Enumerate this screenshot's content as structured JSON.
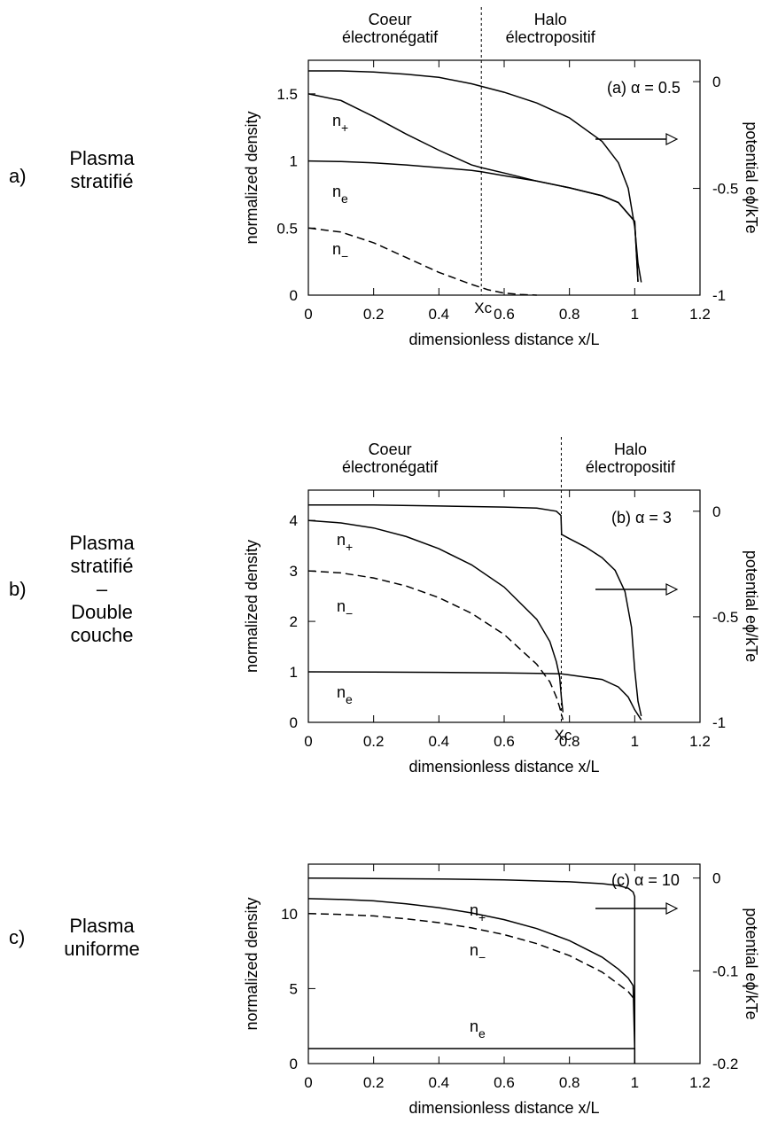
{
  "panels": [
    {
      "letter": "a)",
      "label_lines": [
        "Plasma",
        "stratifié"
      ]
    },
    {
      "letter": "b)",
      "label_lines": [
        "Plasma",
        "stratifié",
        "–",
        "Double",
        "couche"
      ]
    },
    {
      "letter": "c)",
      "label_lines": [
        "Plasma",
        "uniforme"
      ]
    }
  ],
  "chart_data": [
    {
      "type": "line",
      "annotation": "(a) α = 0.5",
      "xlabel": "dimensionless distance x/L",
      "ylabel": "normalized density",
      "y2label": "potential eϕ/kTe",
      "xlim": [
        0,
        1.2
      ],
      "ylim": [
        0,
        1.75
      ],
      "y2lim": [
        -1,
        0.1
      ],
      "xticks": [
        "0",
        "0.2",
        "0.4",
        "0.6",
        "0.8",
        "1",
        "1.2"
      ],
      "yticks": [
        "0",
        "0.5",
        "1",
        "1.5"
      ],
      "y2ticks": [
        "0",
        "-0.5",
        "-1"
      ],
      "region_left": [
        "Coeur",
        "électronégatif"
      ],
      "region_right": [
        "Halo",
        "électropositif"
      ],
      "xc": 0.53,
      "xc_label": "Xc",
      "arrow": true,
      "series": [
        {
          "name": "n+",
          "axis": "left",
          "dashed": false,
          "x": [
            0,
            0.1,
            0.2,
            0.3,
            0.4,
            0.5,
            0.53,
            0.6,
            0.7,
            0.8,
            0.9,
            0.95,
            1.0,
            1.01
          ],
          "y": [
            1.5,
            1.45,
            1.33,
            1.2,
            1.08,
            0.97,
            0.95,
            0.91,
            0.85,
            0.8,
            0.74,
            0.69,
            0.55,
            0.1
          ]
        },
        {
          "name": "ne",
          "axis": "left",
          "dashed": false,
          "x": [
            0,
            0.1,
            0.2,
            0.3,
            0.4,
            0.5,
            0.53,
            0.6,
            0.7,
            0.8,
            0.9,
            0.95,
            1.0,
            1.01
          ],
          "y": [
            1.0,
            0.995,
            0.985,
            0.97,
            0.95,
            0.93,
            0.92,
            0.89,
            0.85,
            0.8,
            0.74,
            0.69,
            0.55,
            0.1
          ]
        },
        {
          "name": "n−",
          "axis": "left",
          "dashed": true,
          "x": [
            0,
            0.1,
            0.2,
            0.3,
            0.4,
            0.5,
            0.55,
            0.6,
            0.65,
            0.7
          ],
          "y": [
            0.5,
            0.47,
            0.39,
            0.28,
            0.17,
            0.08,
            0.04,
            0.015,
            0.005,
            0
          ]
        },
        {
          "name": "",
          "axis": "right",
          "dashed": false,
          "x": [
            0,
            0.1,
            0.2,
            0.3,
            0.4,
            0.5,
            0.6,
            0.7,
            0.8,
            0.9,
            0.95,
            0.98,
            1.0,
            1.01,
            1.02
          ],
          "y": [
            0.05,
            0.05,
            0.045,
            0.035,
            0.02,
            -0.01,
            -0.05,
            -0.1,
            -0.17,
            -0.28,
            -0.38,
            -0.5,
            -0.68,
            -0.85,
            -0.94
          ]
        }
      ]
    },
    {
      "type": "line",
      "annotation": "(b) α = 3",
      "xlabel": "dimensionless distance x/L",
      "ylabel": "normalized density",
      "y2label": "potential eϕ/kTe",
      "xlim": [
        0,
        1.2
      ],
      "ylim": [
        0,
        4.6
      ],
      "y2lim": [
        -1,
        0.1
      ],
      "xticks": [
        "0",
        "0.2",
        "0.4",
        "0.6",
        "0.8",
        "1",
        "1.2"
      ],
      "yticks": [
        "0",
        "1",
        "2",
        "3",
        "4"
      ],
      "y2ticks": [
        "0",
        "-0.5",
        "-1"
      ],
      "region_left": [
        "Coeur",
        "électronégatif"
      ],
      "region_right": [
        "Halo",
        "électropositif"
      ],
      "xc": 0.775,
      "xc_label": "Xc",
      "arrow": true,
      "series": [
        {
          "name": "n+",
          "axis": "left",
          "dashed": false,
          "x": [
            0,
            0.1,
            0.2,
            0.3,
            0.4,
            0.5,
            0.6,
            0.7,
            0.74,
            0.76,
            0.77,
            0.775,
            0.78
          ],
          "y": [
            4.0,
            3.95,
            3.85,
            3.68,
            3.44,
            3.12,
            2.68,
            2.04,
            1.6,
            1.2,
            0.9,
            0.5,
            0.2
          ]
        },
        {
          "name": "n−",
          "axis": "left",
          "dashed": true,
          "x": [
            0,
            0.1,
            0.2,
            0.3,
            0.4,
            0.5,
            0.6,
            0.7,
            0.74,
            0.76,
            0.77,
            0.78
          ],
          "y": [
            3.0,
            2.96,
            2.86,
            2.7,
            2.47,
            2.16,
            1.74,
            1.15,
            0.8,
            0.5,
            0.3,
            0.05
          ]
        },
        {
          "name": "ne",
          "axis": "left",
          "dashed": false,
          "x": [
            0,
            0.2,
            0.4,
            0.6,
            0.7,
            0.775,
            0.8,
            0.9,
            0.95,
            0.98,
            1.0,
            1.02
          ],
          "y": [
            1.0,
            0.995,
            0.99,
            0.98,
            0.97,
            0.96,
            0.94,
            0.85,
            0.7,
            0.5,
            0.25,
            0.05
          ]
        },
        {
          "name": "",
          "axis": "right",
          "dashed": false,
          "x": [
            0,
            0.2,
            0.4,
            0.6,
            0.7,
            0.76,
            0.774,
            0.776,
            0.8,
            0.85,
            0.9,
            0.94,
            0.97,
            0.99,
            1.0,
            1.01,
            1.02
          ],
          "y": [
            0.03,
            0.03,
            0.025,
            0.02,
            0.015,
            0.0,
            -0.02,
            -0.11,
            -0.13,
            -0.17,
            -0.22,
            -0.28,
            -0.38,
            -0.55,
            -0.75,
            -0.9,
            -0.97
          ]
        }
      ]
    },
    {
      "type": "line",
      "annotation": "(c) α = 10",
      "xlabel": "dimensionless distance x/L",
      "ylabel": "normalized density",
      "y2label": "potential eϕ/kTe",
      "xlim": [
        0,
        1.2
      ],
      "ylim": [
        0,
        13.3
      ],
      "y2lim": [
        -0.2,
        0.015
      ],
      "xticks": [
        "0",
        "0.2",
        "0.4",
        "0.6",
        "0.8",
        "1",
        "1.2"
      ],
      "yticks": [
        "0",
        "5",
        "10"
      ],
      "y2ticks": [
        "0",
        "-0.1",
        "-0.2"
      ],
      "arrow": true,
      "series": [
        {
          "name": "n+",
          "axis": "left",
          "dashed": false,
          "x": [
            0,
            0.1,
            0.2,
            0.3,
            0.4,
            0.5,
            0.6,
            0.7,
            0.8,
            0.9,
            0.95,
            0.98,
            0.995,
            1.0
          ],
          "y": [
            11.0,
            10.95,
            10.85,
            10.65,
            10.4,
            10.05,
            9.6,
            9.0,
            8.2,
            7.1,
            6.3,
            5.7,
            5.2,
            1.0
          ]
        },
        {
          "name": "n−",
          "axis": "left",
          "dashed": true,
          "x": [
            0,
            0.1,
            0.2,
            0.3,
            0.4,
            0.5,
            0.6,
            0.7,
            0.8,
            0.9,
            0.95,
            0.98,
            0.995
          ],
          "y": [
            10.0,
            9.95,
            9.85,
            9.65,
            9.4,
            9.05,
            8.6,
            8.0,
            7.2,
            6.1,
            5.3,
            4.8,
            4.4
          ]
        },
        {
          "name": "ne",
          "axis": "left",
          "dashed": false,
          "x": [
            0,
            0.2,
            0.4,
            0.6,
            0.8,
            1.0,
            1.0
          ],
          "y": [
            1.0,
            1.0,
            1.0,
            1.0,
            1.0,
            1.0,
            0
          ]
        },
        {
          "name": "",
          "axis": "right",
          "dashed": false,
          "x": [
            0,
            0.2,
            0.4,
            0.6,
            0.8,
            0.9,
            0.95,
            0.98,
            0.995,
            1.0,
            1.0
          ],
          "y": [
            0.0,
            -0.0005,
            -0.001,
            -0.002,
            -0.004,
            -0.006,
            -0.008,
            -0.011,
            -0.015,
            -0.02,
            -0.2
          ]
        }
      ]
    }
  ]
}
